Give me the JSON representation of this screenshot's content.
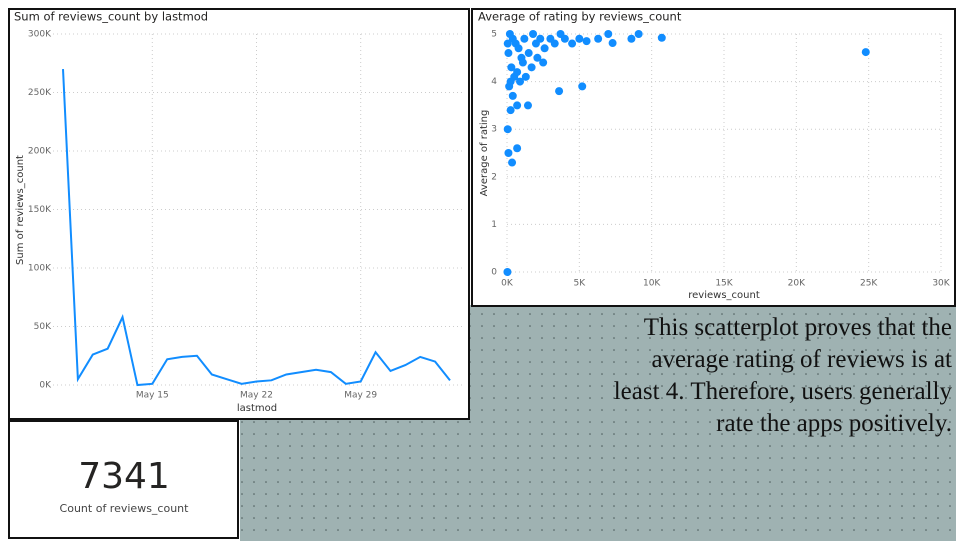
{
  "chart_data": [
    {
      "type": "line",
      "title": "Sum of reviews_count by lastmod",
      "x_label": "lastmod",
      "y_label": "Sum of reviews_count",
      "categories": [
        null,
        null,
        null,
        null,
        null,
        null,
        "May 15",
        null,
        null,
        null,
        null,
        null,
        null,
        "May 22",
        null,
        null,
        null,
        null,
        null,
        null,
        "May 29",
        null,
        null,
        null,
        null,
        null,
        null
      ],
      "values": [
        270000,
        5000,
        26000,
        31000,
        58000,
        0,
        1000,
        22000,
        24000,
        25000,
        9000,
        5000,
        1000,
        3000,
        4000,
        9000,
        11000,
        13000,
        11000,
        1000,
        3000,
        28000,
        12000,
        17000,
        24000,
        20000,
        4000
      ],
      "color": "#118dff",
      "ylim": [
        0,
        300000
      ],
      "yticks": [
        {
          "value": 0,
          "label": "0K"
        },
        {
          "value": 50000,
          "label": "50K"
        },
        {
          "value": 100000,
          "label": "100K"
        },
        {
          "value": 150000,
          "label": "150K"
        },
        {
          "value": 200000,
          "label": "200K"
        },
        {
          "value": 250000,
          "label": "250K"
        },
        {
          "value": 300000,
          "label": "300K"
        }
      ],
      "grid": true
    },
    {
      "type": "scatter",
      "title": "Average of rating by reviews_count",
      "x_label": "reviews_count",
      "y_label": "Average of rating",
      "x": [
        24800,
        10700,
        9100,
        8600,
        7300,
        7000,
        6300,
        5200,
        3600,
        1450,
        700,
        700,
        350,
        100,
        50,
        30,
        250,
        200,
        400,
        600,
        800,
        1000,
        1200,
        1500,
        1800,
        2000,
        2300,
        2600,
        3000,
        3300,
        3700,
        4000,
        4500,
        5000,
        5500,
        300,
        500,
        250,
        150,
        700,
        1100,
        1700,
        100,
        50,
        900,
        1300,
        2100,
        2500,
        400
      ],
      "values": [
        4.62,
        4.92,
        5,
        4.9,
        4.81,
        5,
        4.9,
        3.9,
        3.8,
        3.5,
        3.5,
        2.6,
        2.3,
        2.5,
        3.0,
        0,
        3.4,
        5,
        4.9,
        4.8,
        4.7,
        4.5,
        4.9,
        4.6,
        5,
        4.8,
        4.9,
        4.7,
        4.9,
        4.8,
        5,
        4.9,
        4.8,
        4.9,
        4.85,
        4.3,
        4.1,
        4.0,
        3.9,
        4.2,
        4.4,
        4.3,
        4.6,
        4.8,
        4.0,
        4.1,
        4.5,
        4.4,
        3.7
      ],
      "color": "#118dff",
      "xlim": [
        0,
        30000
      ],
      "xticks": [
        {
          "value": 0,
          "label": "0K"
        },
        {
          "value": 5000,
          "label": "5K"
        },
        {
          "value": 10000,
          "label": "10K"
        },
        {
          "value": 15000,
          "label": "15K"
        },
        {
          "value": 20000,
          "label": "20K"
        },
        {
          "value": 25000,
          "label": "25K"
        },
        {
          "value": 30000,
          "label": "30K"
        }
      ],
      "ylim": [
        0,
        5
      ],
      "yticks": [
        0,
        1,
        2,
        3,
        4,
        5
      ],
      "grid": true
    }
  ],
  "card": {
    "value": 7341,
    "label": "Count of reviews_count"
  },
  "textbox": {
    "text": "This scatterplot proves that the average rating of reviews is at least 4. Therefore, users generally rate the apps positively."
  }
}
